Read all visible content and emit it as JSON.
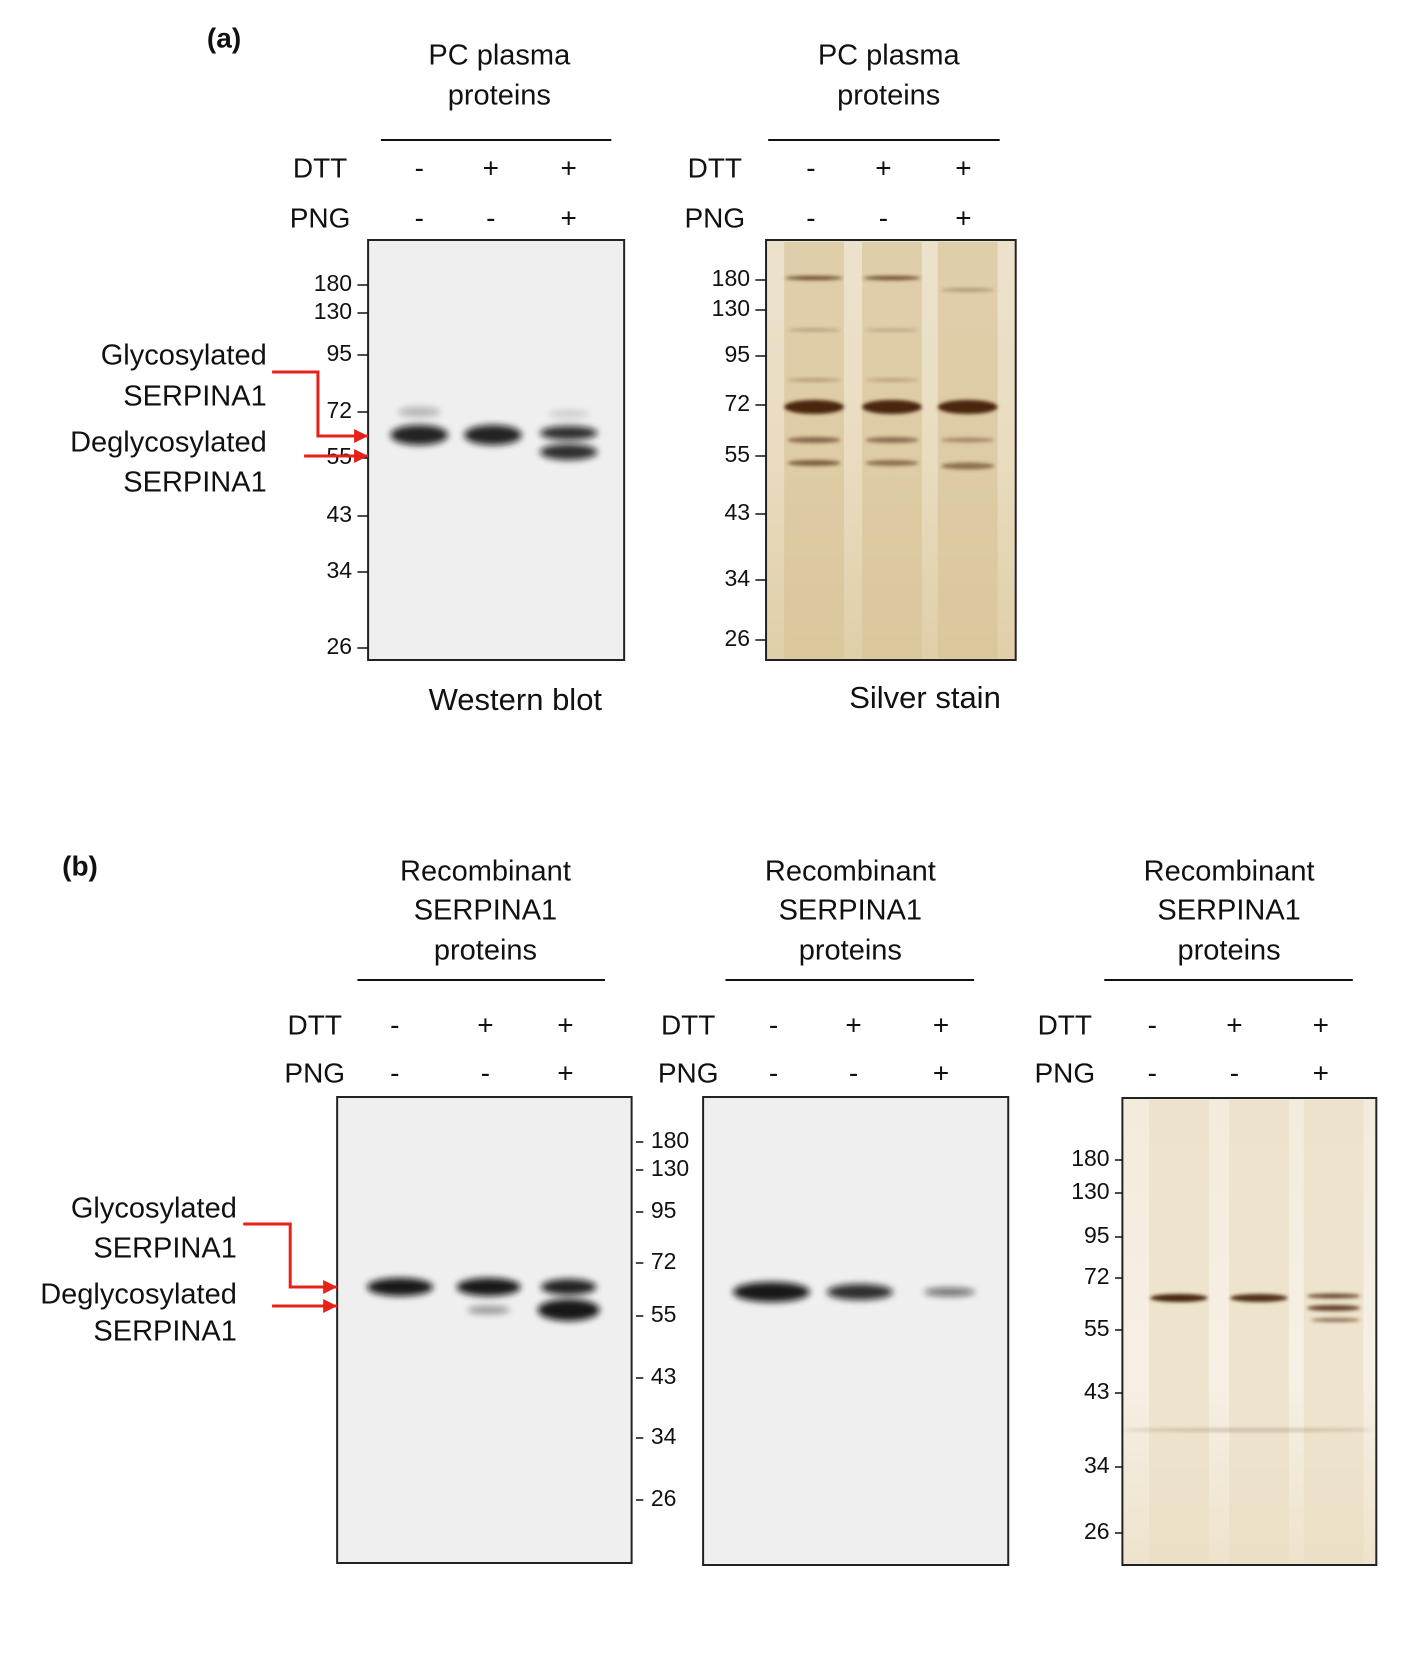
{
  "panel_a": {
    "label": "(a)",
    "annotations": [
      "Glycosylated",
      "SERPINA1",
      "Deglycosylated",
      "SERPINA1"
    ],
    "blots": [
      {
        "header": [
          "PC plasma",
          "proteins"
        ],
        "dtt_label": "DTT",
        "png_label": "PNG",
        "dtt": [
          "-",
          "+",
          "+"
        ],
        "png": [
          "-",
          "-",
          "+"
        ],
        "markers": [
          "180",
          "130",
          "95",
          "72",
          "55",
          "43",
          "34",
          "26"
        ],
        "caption": "Western blot"
      },
      {
        "header": [
          "PC plasma",
          "proteins"
        ],
        "dtt_label": "DTT",
        "png_label": "PNG",
        "dtt": [
          "-",
          "+",
          "+"
        ],
        "png": [
          "-",
          "-",
          "+"
        ],
        "markers": [
          "180",
          "130",
          "95",
          "72",
          "55",
          "43",
          "34",
          "26"
        ],
        "caption": "Silver stain"
      }
    ]
  },
  "panel_b": {
    "label": "(b)",
    "annotations": [
      "Glycosylated",
      "SERPINA1",
      "Deglycosylated",
      "SERPINA1"
    ],
    "blots": [
      {
        "header": [
          "Recombinant",
          "SERPINA1",
          "proteins"
        ],
        "dtt_label": "DTT",
        "png_label": "PNG",
        "dtt": [
          "-",
          "+",
          "+"
        ],
        "png": [
          "-",
          "-",
          "+"
        ],
        "markers": [
          "180",
          "130",
          "95",
          "72",
          "55",
          "43",
          "34",
          "26"
        ]
      },
      {
        "header": [
          "Recombinant",
          "SERPINA1",
          "proteins"
        ],
        "dtt_label": "DTT",
        "png_label": "PNG",
        "dtt": [
          "-",
          "+",
          "+"
        ],
        "png": [
          "-",
          "-",
          "+"
        ]
      },
      {
        "header": [
          "Recombinant",
          "SERPINA1",
          "proteins"
        ],
        "dtt_label": "DTT",
        "png_label": "PNG",
        "dtt": [
          "-",
          "+",
          "+"
        ],
        "png": [
          "-",
          "-",
          "+"
        ],
        "markers": [
          "180",
          "130",
          "95",
          "72",
          "55",
          "43",
          "34",
          "26"
        ]
      }
    ]
  }
}
